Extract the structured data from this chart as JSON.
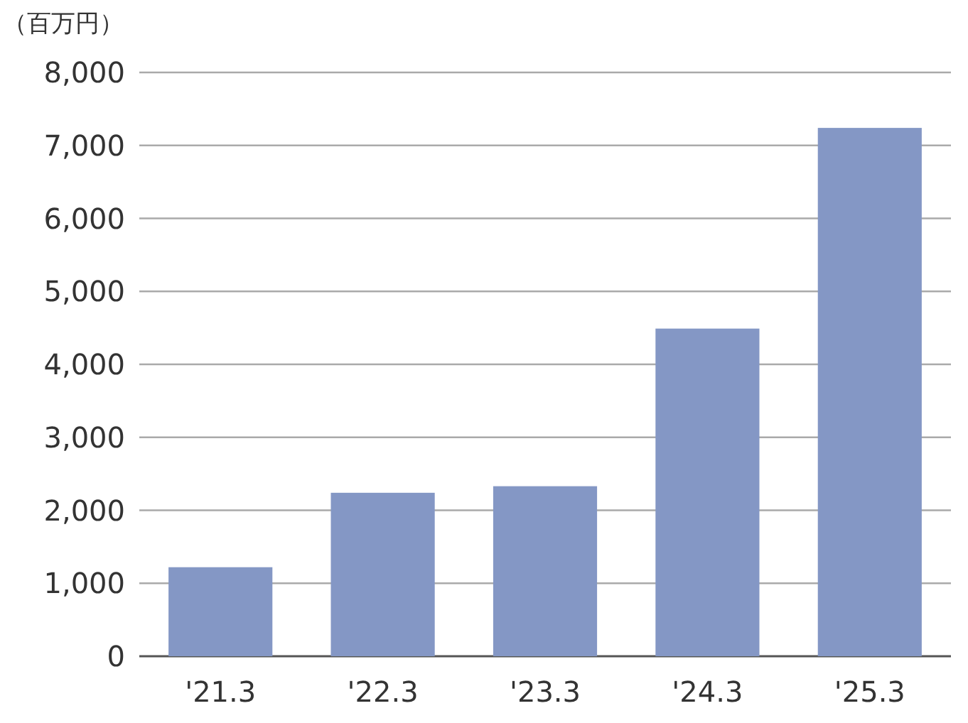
{
  "chart_data": {
    "type": "bar",
    "ylabel": "（百万円）",
    "categories": [
      "'21.3",
      "'22.3",
      "'23.3",
      "'24.3",
      "'25.3"
    ],
    "values": [
      1220,
      2240,
      2330,
      4490,
      7240
    ],
    "color": "#8497c5",
    "ylim": [
      0,
      8000
    ],
    "yticks": [
      {
        "value": 0,
        "label": "0"
      },
      {
        "value": 1000,
        "label": "1,000"
      },
      {
        "value": 2000,
        "label": "2,000"
      },
      {
        "value": 3000,
        "label": "3,000"
      },
      {
        "value": 4000,
        "label": "4,000"
      },
      {
        "value": 5000,
        "label": "5,000"
      },
      {
        "value": 6000,
        "label": "6,000"
      },
      {
        "value": 7000,
        "label": "7,000"
      },
      {
        "value": 8000,
        "label": "8,000"
      }
    ],
    "grid": "y"
  }
}
